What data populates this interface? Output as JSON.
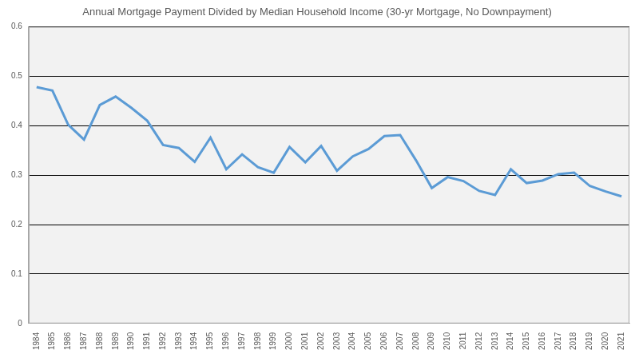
{
  "chart_data": {
    "type": "line",
    "title": "Annual Mortgage Payment Divided by Median Household Income (30-yr Mortgage, No Downpayment)",
    "categories": [
      "1984",
      "1985",
      "1986",
      "1987",
      "1988",
      "1989",
      "1990",
      "1991",
      "1992",
      "1993",
      "1994",
      "1995",
      "1996",
      "1997",
      "1998",
      "1999",
      "2000",
      "2001",
      "2002",
      "2003",
      "2004",
      "2005",
      "2006",
      "2007",
      "2008",
      "2009",
      "2010",
      "2011",
      "2012",
      "2013",
      "2014",
      "2015",
      "2016",
      "2017",
      "2018",
      "2019",
      "2020",
      "2021"
    ],
    "values": [
      0.478,
      0.471,
      0.402,
      0.372,
      0.442,
      0.459,
      0.436,
      0.41,
      0.361,
      0.355,
      0.327,
      0.376,
      0.312,
      0.342,
      0.316,
      0.305,
      0.357,
      0.326,
      0.359,
      0.309,
      0.338,
      0.353,
      0.379,
      0.381,
      0.33,
      0.274,
      0.296,
      0.288,
      0.268,
      0.26,
      0.312,
      0.284,
      0.289,
      0.302,
      0.305,
      0.278,
      0.267,
      0.257
    ],
    "color": "#5b9bd5",
    "ylim": [
      0,
      0.6
    ],
    "yticks": [
      0,
      0.1,
      0.2,
      0.3,
      0.4,
      0.5,
      0.6
    ],
    "grid": true
  }
}
